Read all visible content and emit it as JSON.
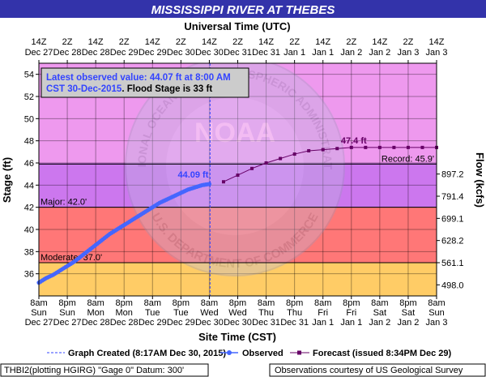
{
  "chart_data": {
    "type": "line",
    "title": "MISSISSIPPI RIVER AT THEBES",
    "top_axis_label": "Universal Time (UTC)",
    "bottom_axis_label": "Site Time (CST)",
    "ylabel_left": "Stage (ft)",
    "ylabel_right": "Flow (kcfs)",
    "ylim": [
      34,
      55
    ],
    "yticks_left": [
      36,
      38,
      40,
      42,
      44,
      46,
      48,
      50,
      52,
      54
    ],
    "right_axis_ticks": [
      {
        "stage": 35,
        "label": "498.0"
      },
      {
        "stage": 37,
        "label": "561.1"
      },
      {
        "stage": 39,
        "label": "628.2"
      },
      {
        "stage": 41,
        "label": "699.1"
      },
      {
        "stage": 43,
        "label": "791.4"
      },
      {
        "stage": 45,
        "label": "897.2"
      }
    ],
    "xlim_hours": [
      0,
      168
    ],
    "x_ticks": [
      {
        "h": 0,
        "top1": "14Z",
        "top2": "Dec 27",
        "bot1": "8am",
        "bot2": "Sun",
        "bot3": "Dec 27"
      },
      {
        "h": 12,
        "top1": "2Z",
        "top2": "Dec 28",
        "bot1": "8pm",
        "bot2": "Sun",
        "bot3": "Dec 27"
      },
      {
        "h": 24,
        "top1": "14Z",
        "top2": "Dec 28",
        "bot1": "8am",
        "bot2": "Mon",
        "bot3": "Dec 28"
      },
      {
        "h": 36,
        "top1": "2Z",
        "top2": "Dec 29",
        "bot1": "8pm",
        "bot2": "Mon",
        "bot3": "Dec 28"
      },
      {
        "h": 48,
        "top1": "14Z",
        "top2": "Dec 29",
        "bot1": "8am",
        "bot2": "Tue",
        "bot3": "Dec 29"
      },
      {
        "h": 60,
        "top1": "2Z",
        "top2": "Dec 30",
        "bot1": "8pm",
        "bot2": "Tue",
        "bot3": "Dec 29"
      },
      {
        "h": 72,
        "top1": "14Z",
        "top2": "Dec 30",
        "bot1": "8am",
        "bot2": "Wed",
        "bot3": "Dec 30"
      },
      {
        "h": 84,
        "top1": "2Z",
        "top2": "Dec 31",
        "bot1": "8pm",
        "bot2": "Wed",
        "bot3": "Dec 30"
      },
      {
        "h": 96,
        "top1": "14Z",
        "top2": "Dec 31",
        "bot1": "8am",
        "bot2": "Thu",
        "bot3": "Dec 31"
      },
      {
        "h": 108,
        "top1": "2Z",
        "top2": "Jan 1",
        "bot1": "8pm",
        "bot2": "Thu",
        "bot3": "Dec 31"
      },
      {
        "h": 120,
        "top1": "14Z",
        "top2": "Jan 1",
        "bot1": "8am",
        "bot2": "Fri",
        "bot3": "Jan 1"
      },
      {
        "h": 132,
        "top1": "2Z",
        "top2": "Jan 2",
        "bot1": "8pm",
        "bot2": "Fri",
        "bot3": "Jan 1"
      },
      {
        "h": 144,
        "top1": "14Z",
        "top2": "Jan 2",
        "bot1": "8am",
        "bot2": "Sat",
        "bot3": "Jan 2"
      },
      {
        "h": 156,
        "top1": "2Z",
        "top2": "Jan 3",
        "bot1": "8pm",
        "bot2": "Sat",
        "bot3": "Jan 2"
      },
      {
        "h": 168,
        "top1": "14Z",
        "top2": "Jan 3",
        "bot1": "8am",
        "bot2": "Sun",
        "bot3": "Jan 3"
      }
    ],
    "bands": [
      {
        "from": 34,
        "to": 37,
        "color": "#ffcc66"
      },
      {
        "from": 37,
        "to": 42,
        "color": "#ff7777"
      },
      {
        "from": 42,
        "to": 46,
        "color": "#cc77ee"
      },
      {
        "from": 46,
        "to": 55,
        "color": "#ee99ee"
      }
    ],
    "thresholds": [
      {
        "stage": 37,
        "label": "Moderate: 37.0'",
        "side": "left"
      },
      {
        "stage": 42,
        "label": "Major: 42.0'",
        "side": "left"
      },
      {
        "stage": 45.9,
        "label": "Record: 45.9'",
        "side": "right"
      }
    ],
    "graph_created_hour": 72.3,
    "observed": {
      "name": "Observed",
      "color": "#4466ff",
      "x_hours": [
        0,
        3,
        6,
        9,
        12,
        15,
        18,
        21,
        24,
        27,
        30,
        33,
        36,
        39,
        42,
        45,
        48,
        51,
        54,
        57,
        60,
        63,
        66,
        69,
        72
      ],
      "stage": [
        35.2,
        35.6,
        35.9,
        36.3,
        36.7,
        37.1,
        37.6,
        38.1,
        38.6,
        39.1,
        39.6,
        40.0,
        40.4,
        40.8,
        41.2,
        41.6,
        42.0,
        42.4,
        42.7,
        43.0,
        43.3,
        43.6,
        43.8,
        44.0,
        44.1
      ],
      "peak_label": "44.09 ft"
    },
    "forecast": {
      "name": "Forecast (issued 8:34PM Dec 29)",
      "color": "#660066",
      "x_hours": [
        78,
        84,
        90,
        96,
        102,
        108,
        114,
        120,
        126,
        132,
        138,
        144,
        150,
        156,
        162,
        168
      ],
      "stage": [
        44.3,
        44.9,
        45.5,
        46.0,
        46.4,
        46.8,
        47.1,
        47.2,
        47.3,
        47.4,
        47.4,
        47.4,
        47.4,
        47.4,
        47.4,
        47.4
      ],
      "peak_label": "47.4 ft"
    },
    "info_box": {
      "line1": "Latest observed value: 44.07 ft at 8:00 AM",
      "line2_blue": "CST 30-Dec-2015",
      "line2_black": ". Flood Stage is 33 ft"
    },
    "legend": {
      "graph_created": "Graph Created (8:17AM Dec 30, 2015)",
      "observed": "Observed",
      "forecast": "Forecast (issued 8:34PM Dec 29)"
    },
    "footer_left": "THBI2(plotting HGIRG) \"Gage 0\" Datum: 300'",
    "footer_right": "Observations courtesy of US Geological Survey",
    "watermark": {
      "center": "NOAA",
      "arc_top": "NATIONAL OCEANIC AND ATMOSPHERIC ADMINISTRATION",
      "arc_bottom": "U.S. DEPARTMENT OF COMMERCE"
    }
  }
}
